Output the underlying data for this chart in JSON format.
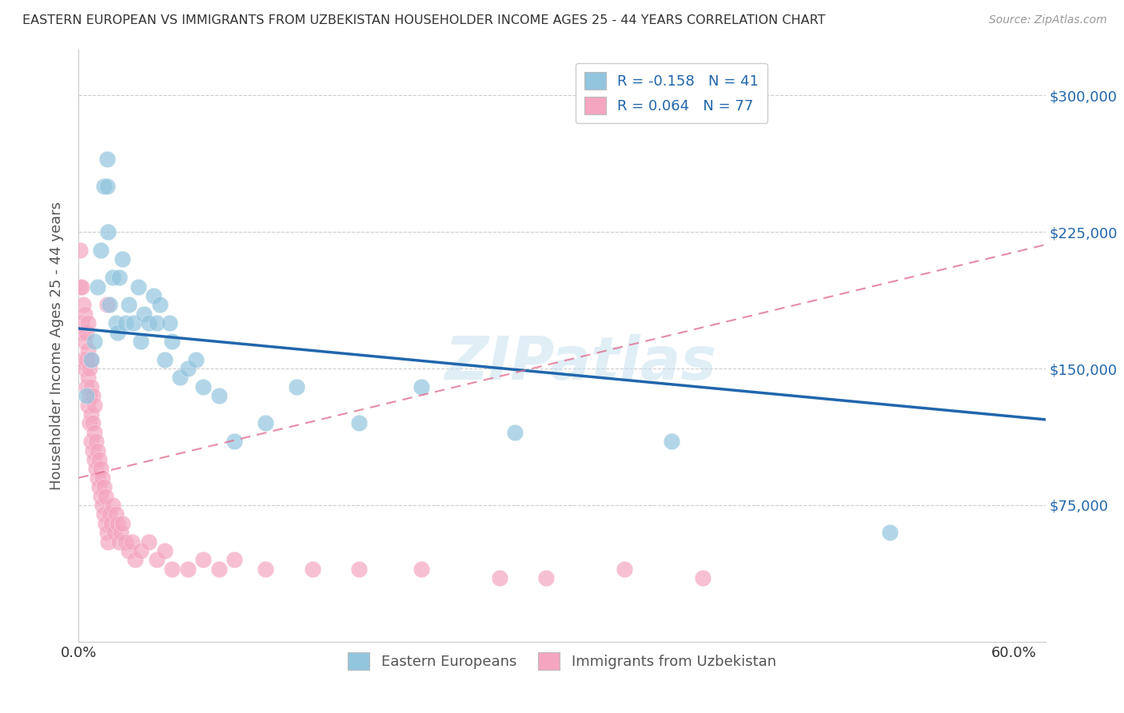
{
  "title": "EASTERN EUROPEAN VS IMMIGRANTS FROM UZBEKISTAN HOUSEHOLDER INCOME AGES 25 - 44 YEARS CORRELATION CHART",
  "source": "Source: ZipAtlas.com",
  "ylabel": "Householder Income Ages 25 - 44 years",
  "y_tick_labels_right": [
    "$75,000",
    "$150,000",
    "$225,000",
    "$300,000"
  ],
  "xlim": [
    0.0,
    0.62
  ],
  "ylim": [
    0,
    325000
  ],
  "legend_label_blue": "R = -0.158   N = 41",
  "legend_label_pink": "R = 0.064   N = 77",
  "legend_bottom_blue": "Eastern Europeans",
  "legend_bottom_pink": "Immigrants from Uzbekistan",
  "blue_color": "#92c5de",
  "pink_color": "#f4a6c0",
  "blue_line_color": "#2166ac",
  "pink_line_color": "#e07090",
  "watermark": "ZIPatlas",
  "blue_line_x0": 0.0,
  "blue_line_y0": 172000,
  "blue_line_x1": 0.62,
  "blue_line_y1": 122000,
  "pink_line_x0": 0.0,
  "pink_line_y0": 90000,
  "pink_line_x1": 0.62,
  "pink_line_y1": 218000,
  "blue_scatter_x": [
    0.005,
    0.008,
    0.01,
    0.012,
    0.014,
    0.016,
    0.018,
    0.018,
    0.019,
    0.02,
    0.022,
    0.024,
    0.025,
    0.026,
    0.028,
    0.03,
    0.032,
    0.035,
    0.038,
    0.04,
    0.042,
    0.045,
    0.048,
    0.05,
    0.052,
    0.055,
    0.058,
    0.06,
    0.065,
    0.07,
    0.075,
    0.08,
    0.09,
    0.1,
    0.12,
    0.14,
    0.18,
    0.22,
    0.28,
    0.38,
    0.52
  ],
  "blue_scatter_y": [
    135000,
    155000,
    165000,
    195000,
    215000,
    250000,
    250000,
    265000,
    225000,
    185000,
    200000,
    175000,
    170000,
    200000,
    210000,
    175000,
    185000,
    175000,
    195000,
    165000,
    180000,
    175000,
    190000,
    175000,
    185000,
    155000,
    175000,
    165000,
    145000,
    150000,
    155000,
    140000,
    135000,
    110000,
    120000,
    140000,
    120000,
    140000,
    115000,
    110000,
    60000
  ],
  "pink_scatter_x": [
    0.001,
    0.001,
    0.002,
    0.002,
    0.003,
    0.003,
    0.003,
    0.004,
    0.004,
    0.004,
    0.005,
    0.005,
    0.005,
    0.006,
    0.006,
    0.006,
    0.006,
    0.007,
    0.007,
    0.007,
    0.008,
    0.008,
    0.008,
    0.008,
    0.009,
    0.009,
    0.009,
    0.01,
    0.01,
    0.01,
    0.011,
    0.011,
    0.012,
    0.012,
    0.013,
    0.013,
    0.014,
    0.014,
    0.015,
    0.015,
    0.016,
    0.016,
    0.017,
    0.017,
    0.018,
    0.018,
    0.019,
    0.02,
    0.021,
    0.022,
    0.023,
    0.024,
    0.025,
    0.026,
    0.027,
    0.028,
    0.03,
    0.032,
    0.034,
    0.036,
    0.04,
    0.045,
    0.05,
    0.055,
    0.06,
    0.07,
    0.08,
    0.09,
    0.1,
    0.12,
    0.15,
    0.18,
    0.22,
    0.27,
    0.3,
    0.35,
    0.4
  ],
  "pink_scatter_y": [
    195000,
    215000,
    175000,
    195000,
    155000,
    170000,
    185000,
    150000,
    165000,
    180000,
    140000,
    155000,
    170000,
    130000,
    145000,
    160000,
    175000,
    120000,
    135000,
    150000,
    110000,
    125000,
    140000,
    155000,
    105000,
    120000,
    135000,
    100000,
    115000,
    130000,
    95000,
    110000,
    90000,
    105000,
    85000,
    100000,
    80000,
    95000,
    75000,
    90000,
    70000,
    85000,
    65000,
    80000,
    60000,
    185000,
    55000,
    70000,
    65000,
    75000,
    60000,
    70000,
    65000,
    55000,
    60000,
    65000,
    55000,
    50000,
    55000,
    45000,
    50000,
    55000,
    45000,
    50000,
    40000,
    40000,
    45000,
    40000,
    45000,
    40000,
    40000,
    40000,
    40000,
    35000,
    35000,
    40000,
    35000
  ]
}
